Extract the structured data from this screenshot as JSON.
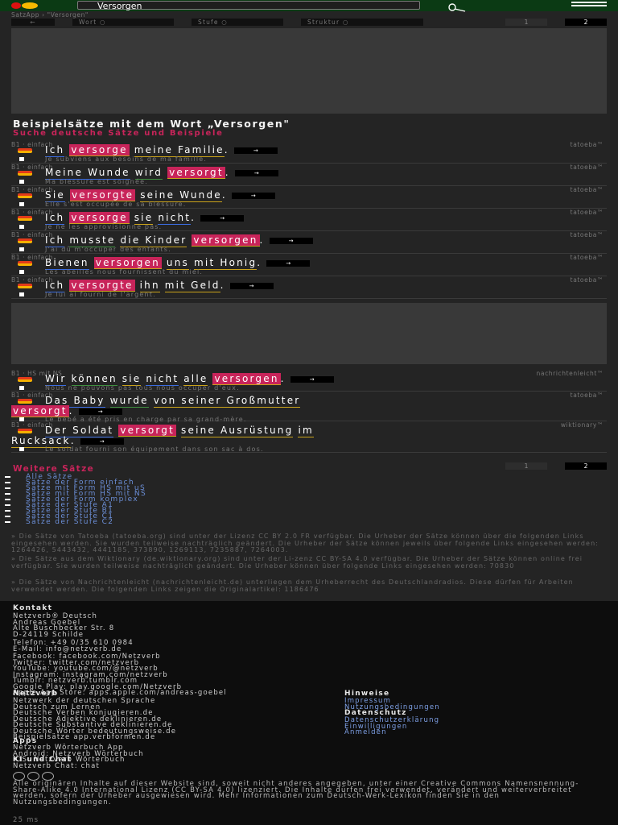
{
  "header": {
    "search_value": "Versorgen",
    "logo_icon": "netzverb-logo-icon",
    "search_icon": "search-icon",
    "menu_icon": "hamburger-menu-icon"
  },
  "breadcrumb": "SatzApp › \"Versorgen\"",
  "nav": {
    "back": "←",
    "wort": "Wort ○",
    "stufe": "Stufe ○",
    "struktur": "Struktur ○",
    "page1": "1",
    "page2": "2"
  },
  "heading": "Beispielsätze mit dem Wort „Versorgen\"",
  "subheading": "Suche deutsche Sätze und Beispiele",
  "sentences": [
    {
      "meta": "B1 · einfach",
      "source": "tatoeba™",
      "parts": [
        {
          "t": "Ich",
          "c": "w"
        },
        {
          "t": "versorge",
          "c": "hl"
        },
        {
          "t": "meine Familie",
          "c": "w y"
        },
        {
          "t": ".",
          "c": ""
        }
      ],
      "fr": "Je subviens aux besoins de ma famille."
    },
    {
      "meta": "B1 · einfach",
      "source": "tatoeba™",
      "parts": [
        {
          "t": "Meine Wunde",
          "c": "w"
        },
        {
          "t": "wird",
          "c": "w g"
        },
        {
          "t": "versorgt",
          "c": "hl"
        },
        {
          "t": ".",
          "c": ""
        }
      ],
      "fr": "Ma blessure est soignée."
    },
    {
      "meta": "B1 · einfach",
      "source": "tatoeba™",
      "parts": [
        {
          "t": "Sie",
          "c": "w"
        },
        {
          "t": "versorgte",
          "c": "hl"
        },
        {
          "t": "seine Wunde",
          "c": "w y"
        },
        {
          "t": ".",
          "c": ""
        }
      ],
      "fr": "Elle s'est occupée de sa blessure."
    },
    {
      "meta": "B1 · einfach",
      "source": "tatoeba™",
      "parts": [
        {
          "t": "Ich",
          "c": "w"
        },
        {
          "t": "versorge",
          "c": "hl"
        },
        {
          "t": "sie",
          "c": "w y"
        },
        {
          "t": "nicht",
          "c": "w"
        },
        {
          "t": ".",
          "c": ""
        }
      ],
      "fr": "Je ne les approvisionne pas."
    },
    {
      "meta": "B1 · einfach",
      "source": "tatoeba™",
      "parts": [
        {
          "t": "Ich",
          "c": "w"
        },
        {
          "t": "musste",
          "c": "w g"
        },
        {
          "t": "die Kinder",
          "c": "w y"
        },
        {
          "t": "versorgen",
          "c": "hl"
        },
        {
          "t": ".",
          "c": ""
        }
      ],
      "fr": "J'ai dû m'occuper des enfants."
    },
    {
      "meta": "B1 · einfach",
      "source": "tatoeba™",
      "parts": [
        {
          "t": "Bienen",
          "c": "w"
        },
        {
          "t": "versorgen",
          "c": "hl"
        },
        {
          "t": "uns",
          "c": "w y"
        },
        {
          "t": "mit Honig",
          "c": "w y"
        },
        {
          "t": ".",
          "c": ""
        }
      ],
      "fr": "Les abeilles nous fournissent du miel."
    },
    {
      "meta": "B1 · einfach",
      "source": "tatoeba™",
      "parts": [
        {
          "t": "Ich",
          "c": "w"
        },
        {
          "t": "versorgte",
          "c": "hl"
        },
        {
          "t": "ihn",
          "c": "w y"
        },
        {
          "t": "mit Geld",
          "c": "w y"
        },
        {
          "t": ".",
          "c": ""
        }
      ],
      "fr": "Je lui ai fourni de l'argent."
    }
  ],
  "sentences2": [
    {
      "meta": "B1 · HS mit NS",
      "source": "nachrichtenleicht™",
      "parts": [
        {
          "t": "Wir",
          "c": "w"
        },
        {
          "t": "können",
          "c": "w g"
        },
        {
          "t": "sie",
          "c": "w y"
        },
        {
          "t": "nicht",
          "c": "w"
        },
        {
          "t": "alle",
          "c": "w y"
        },
        {
          "t": "versorgen",
          "c": "hl"
        },
        {
          "t": ".",
          "c": ""
        }
      ],
      "fr": "Nous ne pouvons pas tous nous occuper d'eux."
    },
    {
      "meta": "B1 · einfach",
      "source": "tatoeba™",
      "parts": [
        {
          "t": "Das Baby",
          "c": "w"
        },
        {
          "t": "wurde",
          "c": "w g"
        },
        {
          "t": "von seiner Großmutter",
          "c": "w y"
        }
      ],
      "parts2": [
        {
          "t": "versorgt",
          "c": "hl"
        },
        {
          "t": ".",
          "c": ""
        }
      ],
      "fr": "Le bébé a été pris en charge par sa grand-mère."
    },
    {
      "meta": "B1 · einfach",
      "source": "wiktionary™",
      "parts": [
        {
          "t": "Der Soldat",
          "c": "w"
        },
        {
          "t": "versorgt",
          "c": "hl"
        },
        {
          "t": "seine Ausrüstung",
          "c": "w y"
        },
        {
          "t": "im",
          "c": "w y"
        }
      ],
      "parts2": [
        {
          "t": "Rucksack",
          "c": "w y"
        },
        {
          "t": ".",
          "c": ""
        }
      ],
      "fr": "Le soldat fourni son équipement dans son sac à dos."
    }
  ],
  "arrow_label": "→",
  "more": {
    "title": "Weitere Sätze",
    "page1": "1",
    "page2": "2",
    "items": [
      "Alle Sätze",
      "Sätze der Form einfach",
      "Sätze mit Form HS mit uS",
      "Sätze mit Form HS mit NS",
      "Sätze der Form komplex",
      "Sätze der Stufe A1",
      "Sätze der Stufe B1",
      "Sätze der Stufe C1",
      "Sätze der Stufe C2"
    ]
  },
  "notes": [
    "» Die Sätze von Tatoeba (tatoeba.org) sind unter der Lizenz CC BY 2.0 FR verfügbar. Die Urheber der Sätze können über die folgenden Links eingesehen werden. Sie wurden teilweise nachträglich geändert. Die Urheber der Sätze können jeweils über folgende Links eingesehen werden: 1264426, 5443432, 4441185, 373890, 1269113, 7235887, 7264003.",
    "» Die Sätze aus dem Wiktionary (de.wiktionary.org) sind unter der Li-zenz CC BY-SA 4.0 verfügbar. Die Urheber der Sätze können online frei verfügbar. Sie wurden teilweise nachträglich geändert. Die Urheber können über folgende Links eingesehen werden: 70830",
    "» Die Sätze von Nachrichtenleicht (nachrichtenleicht.de) unterliegen dem Urheberrecht des Deutschlandradios. Diese dürfen für Arbeiten verwendet werden. Die folgenden Links zeigen die Originalartikel: 1186476"
  ],
  "footer": {
    "kontakt_title": "Kontakt",
    "kontakt_lines": [
      "Netzverb® Deutsch",
      "Andreas Goebel",
      "Alte Buschbecker Str. 8",
      "D-24119 Schilde"
    ],
    "telefon": "Telefon: +49 0/35 610 0984",
    "email": "E-Mail: info@netzverb.de",
    "social": [
      "Facebook: facebook.com/Netzverb",
      "Twitter: twitter.com/netzverb",
      "YouTube: youtube.com/@netzverb",
      "Instagram: instagram.com/netzverb",
      "Tumblr: netzverb.tumblr.com",
      "Google Play: play.google.com/Netzverb",
      "Apple App Store: apps.apple.com/andreas-goebel"
    ],
    "netzverb_title": "Netzverb",
    "netzverb_lines": [
      "Netzwerk der deutschen Sprache",
      "Deutsch zum Lernen",
      "Deutsche Verben konjugieren.de",
      "Deutsche Adjektive deklinieren.de",
      "Deutsche Substantive deklinieren.de",
      "Deutsche Wörter bedeutungsweise.de",
      "Beispielsätze app.verbformen.de"
    ],
    "hinweise_title": "Hinweise",
    "hinweise_lines": [
      "Impressum",
      "Nutzungsbedingungen"
    ],
    "datenschutz_title": "Datenschutz",
    "datenschutz_lines": [
      "Datenschutzerklärung",
      "Einwilligungen",
      "Anmelden"
    ],
    "apps_title": "Apps",
    "apps_lines": [
      "Netzverb Wörterbuch App",
      "Android: Netzverb Wörterbuch",
      "iOS: Netzverb Wörterbuch"
    ],
    "ki_title": "KI und Chat",
    "ki_lines": [
      "Netzverb Chat: chat"
    ],
    "license_text": "Alle originären Inhalte auf dieser Website sind, soweit nicht anderes angegeben, unter einer Creative Commons Namensnennung-Share-Alike 4.0 International Lizenz (CC BY-SA 4.0) lizenziert. Die Inhalte dürfen frei verwendet, verändert und weiterverbreitet werden, sofern der Urheber ausgewiesen wird. Mehr Informationen zum Deutsch-Werk-Lexikon finden Sie in den Nutzungsbedingungen.",
    "timing": "25 ms"
  },
  "colors": {
    "accent": "#c8245a",
    "header": "#0b3a14",
    "link": "#7ea0e6"
  }
}
